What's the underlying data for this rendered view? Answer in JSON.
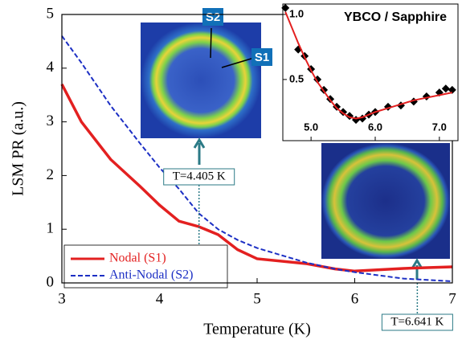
{
  "chart_data": [
    {
      "type": "line",
      "x_label": "Temperature (K)",
      "y_label": "LSM PR (a.u.)",
      "xlim": [
        3,
        7
      ],
      "xticks": [
        3,
        4,
        5,
        6,
        7
      ],
      "ylim": [
        0,
        5
      ],
      "yticks": [
        0,
        1,
        2,
        3,
        4,
        5
      ],
      "x": [
        3,
        3.2,
        3.5,
        3.8,
        4.0,
        4.2,
        4.4,
        4.6,
        4.8,
        5.0,
        5.5,
        5.8,
        6.0,
        6.5,
        7.0
      ],
      "series": [
        {
          "name": "Nodal (S1)",
          "color": "#e32020",
          "dash": false,
          "values": [
            3.7,
            3.0,
            2.3,
            1.8,
            1.45,
            1.15,
            1.05,
            0.9,
            0.62,
            0.45,
            0.36,
            0.26,
            0.22,
            0.27,
            0.3
          ]
        },
        {
          "name": "Anti-Nodal (S2)",
          "color": "#1c2fc4",
          "dash": true,
          "values": [
            4.6,
            4.1,
            3.3,
            2.6,
            2.15,
            1.75,
            1.3,
            1.0,
            0.8,
            0.65,
            0.38,
            0.26,
            0.2,
            0.08,
            0.03
          ]
        }
      ],
      "legend": "lower left",
      "annotations": [
        {
          "text": "T=4.405 K",
          "x": 4.405
        },
        {
          "text": "T=6.641 K",
          "x": 6.641
        }
      ],
      "image_labels": [
        "S2",
        "S1"
      ]
    },
    {
      "type": "scatter",
      "title": "YBCO / Sapphire",
      "xlim": [
        4.56,
        7.29
      ],
      "xticks": [
        {
          "value": 5,
          "label": "5.0"
        },
        {
          "value": 6,
          "label": "6.0"
        },
        {
          "value": 7,
          "label": "7.0"
        }
      ],
      "ylim": [
        0.03,
        1.08
      ],
      "yticks": [
        {
          "value": 0.5,
          "label": "0.5"
        },
        {
          "value": 1,
          "label": "1.0"
        }
      ],
      "x": [
        4.6,
        4.8,
        4.9,
        5.0,
        5.1,
        5.2,
        5.3,
        5.4,
        5.5,
        5.6,
        5.7,
        5.8,
        5.9,
        6.0,
        6.2,
        6.4,
        6.6,
        6.8,
        7.0,
        7.1,
        7.2
      ],
      "series": [
        {
          "color": "#000000",
          "marker": "diamond",
          "values": [
            1.05,
            0.73,
            0.68,
            0.58,
            0.5,
            0.42,
            0.35,
            0.29,
            0.25,
            0.22,
            0.19,
            0.2,
            0.23,
            0.25,
            0.29,
            0.3,
            0.33,
            0.37,
            0.4,
            0.43,
            0.42
          ]
        },
        {
          "color": "#e32020",
          "marker": "line",
          "values": [
            1.02,
            0.78,
            0.67,
            0.57,
            0.48,
            0.41,
            0.34,
            0.28,
            0.24,
            0.21,
            0.2,
            0.21,
            0.23,
            0.25,
            0.28,
            0.31,
            0.34,
            0.36,
            0.38,
            0.39,
            0.4
          ]
        }
      ]
    }
  ]
}
